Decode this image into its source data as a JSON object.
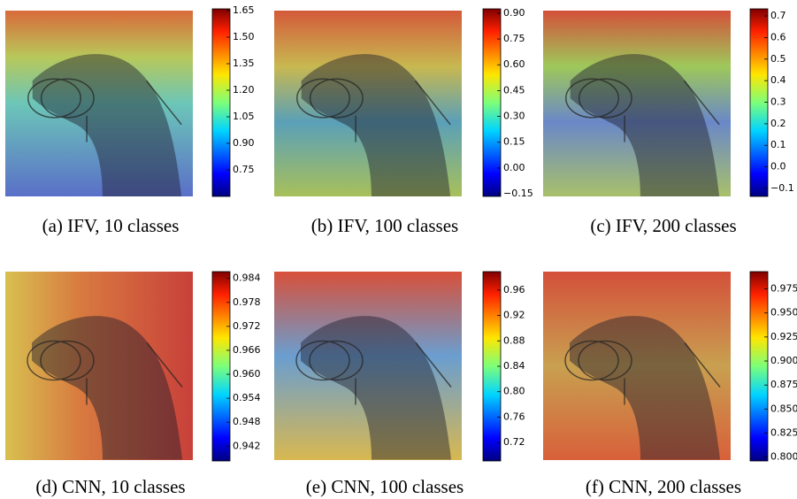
{
  "panels": [
    {
      "caption": "(a) IFV, 10 classes",
      "colorbar": {
        "lim": [
          0.6,
          1.66
        ],
        "ticks": [
          1.65,
          {
            "value": 1.5,
            "label": "1.50"
          },
          1.35,
          {
            "value": 1.2,
            "label": "1.20"
          },
          1.05,
          {
            "value": 0.9,
            "label": "0.90"
          },
          0.75
        ]
      }
    },
    {
      "caption": "(b) IFV, 100 classes",
      "colorbar": {
        "lim": [
          -0.165,
          0.925
        ],
        "ticks": [
          {
            "value": 0.9,
            "label": "0.90"
          },
          0.75,
          {
            "value": 0.6,
            "label": "0.60"
          },
          0.45,
          {
            "value": 0.3,
            "label": "0.30"
          },
          0.15,
          {
            "value": 0,
            "label": "0.00"
          },
          {
            "value": -0.15,
            "label": "−0.15"
          }
        ]
      }
    },
    {
      "caption": "(c) IFV, 200 classes",
      "colorbar": {
        "lim": [
          -0.137,
          0.733
        ],
        "ticks": [
          0.7,
          0.6,
          0.5,
          0.4,
          0.3,
          0.2,
          0.1,
          {
            "value": 0,
            "label": "0.0"
          },
          {
            "value": -0.1,
            "label": "−0.1"
          }
        ]
      }
    },
    {
      "caption": "(d) CNN, 10 classes",
      "colorbar": {
        "lim": [
          0.9383,
          0.9857
        ],
        "ticks": [
          0.984,
          0.978,
          0.972,
          0.966,
          {
            "value": 0.96,
            "label": "0.960"
          },
          0.954,
          0.948,
          0.942
        ]
      }
    },
    {
      "caption": "(e) CNN, 100 classes",
      "colorbar": {
        "lim": [
          0.691,
          0.989
        ],
        "ticks": [
          0.96,
          0.92,
          0.88,
          0.84,
          {
            "value": 0.8,
            "label": "0.80"
          },
          0.76,
          0.72
        ]
      }
    },
    {
      "caption": "(f) CNN, 200 classes",
      "colorbar": {
        "lim": [
          0.796,
          0.993
        ],
        "ticks": [
          0.975,
          {
            "value": 0.95,
            "label": "0.950"
          },
          0.925,
          {
            "value": 0.9,
            "label": "0.900"
          },
          0.875,
          {
            "value": 0.85,
            "label": "0.850"
          },
          0.825,
          {
            "value": 0.8,
            "label": "0.800"
          }
        ]
      }
    }
  ]
}
